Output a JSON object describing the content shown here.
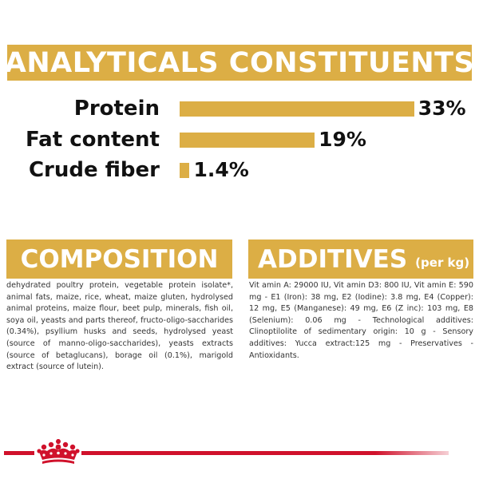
{
  "analytics": {
    "title": "ANALYTICALS CONSTITUENTS",
    "rows": [
      {
        "label": "Protein",
        "value_text": "33%",
        "value": 33
      },
      {
        "label": "Fat content",
        "value_text": "19%",
        "value": 19
      },
      {
        "label": "Crude fiber",
        "value_text": "1.4%",
        "value": 1.4
      }
    ]
  },
  "composition": {
    "title": "COMPOSITION",
    "text": "dehydrated poultry protein, vegetable protein isolate*, animal fats, maize, rice, wheat, maize gluten, hydrolysed animal proteins, maize flour, beet pulp, minerals, fish oil, soya oil, yeasts and parts thereof, fructo-oligo-saccharides (0.34%), psyllium husks and seeds, hydrolysed yeast (source of manno-oligo-saccharides), yeasts extracts (source of betaglucans), borage oil (0.1%), marigold extract (source of lutein)."
  },
  "additives": {
    "title": "ADDITIVES",
    "subtitle": "(per kg)",
    "text": "Vit amin A: 29000 IU, Vit amin D3: 800 IU, Vit amin E: 590 mg - E1 (Iron): 38 mg, E2 (Iodine): 3.8 mg, E4 (Copper): 12 mg, E5 (Manganese): 49 mg, E6 (Z inc): 103 mg, E8 (Selenium): 0.06 mg - Technological additives: Clinoptilolite of sedimentary origin: 10 g - Sensory additives: Yucca extract:125 mg - Preservatives - Antioxidants."
  },
  "colors": {
    "accent": "#dcae45",
    "brand_red": "#d0112b"
  },
  "icons": {
    "footer_logo": "crown-icon"
  }
}
